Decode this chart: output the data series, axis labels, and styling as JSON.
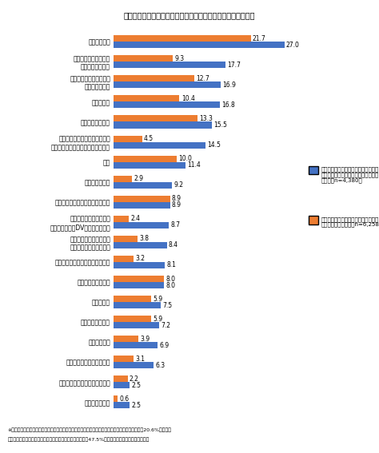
{
  "title": "図６　現在の孤独感に影響を与えたと思う出来事（複数回答）",
  "categories": [
    "家族との死別",
    "心身の重大なトラブル\n（病気・怪我等）",
    "転校・転職・離職・退職\n（失業を除く）",
    "一人暮らし",
    "家族の病気・障害",
    "人間関係による重大なトラブル\n（いじめ・ハラスメント等を含む）",
    "転居",
    "生活困窮・貧困",
    "家族以外の親しい知人等との死別",
    "家族間の重大なトラブル\n（家庭内別居・DV・虐待を含む）",
    "失業・休職・退学・休学\n（中退・不登校を含む）",
    "仕事上（職場）の重大なトラブル",
    "妊娠・出産・子育て",
    "介護・介助",
    "子どもの独り立ち",
    "家族との離別",
    "金銭による重大なトラブル",
    "自然災害の被災・犯罪の被害等",
    "その他の出来事"
  ],
  "blue_values": [
    27.0,
    17.7,
    16.9,
    16.8,
    15.5,
    14.5,
    11.4,
    9.2,
    8.9,
    8.7,
    8.4,
    8.1,
    8.0,
    7.5,
    7.2,
    6.9,
    6.3,
    2.5,
    2.5
  ],
  "orange_values": [
    21.7,
    9.3,
    12.7,
    10.4,
    13.3,
    4.5,
    10.0,
    2.9,
    8.9,
    2.4,
    3.8,
    3.2,
    8.0,
    5.9,
    5.9,
    3.9,
    3.1,
    2.2,
    0.6
  ],
  "blue_color": "#4472C4",
  "orange_color": "#ED7D31",
  "legend_blue_title": "孤独感が「しばしばある・常にある」",
  "legend_blue_line2": "「時々ある」「たまにある」と回答し",
  "legend_blue_line3": "た人　（n=4,380）",
  "legend_orange_title": "孤独感が「決してない」「ほとんどな",
  "legend_orange_line2": "い」とほ回答した人（n=6,258）",
  "footnote_line1": "※孤独感が「しばしばある・常にある」「時々ある」または「たまにある」と回答した人の無回答（20.6%）、「決",
  "footnote_line2": "してない」または「ほとんどない」と回答した人の無回答（47.5%）は、グラフから省略している。",
  "xlim": [
    0,
    30
  ],
  "bar_height": 0.32,
  "background_color": "#ffffff"
}
